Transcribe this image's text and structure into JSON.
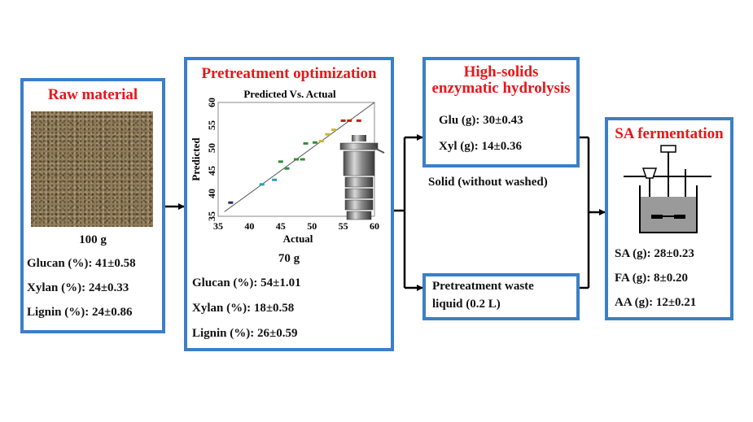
{
  "raw": {
    "title": "Raw material",
    "mass": "100 g",
    "lines": [
      "Glucan (%): 41±0.58",
      "Xylan (%): 24±0.33",
      "Lignin (%): 24±0.86"
    ]
  },
  "pretreat": {
    "title": "Pretreatment optimization",
    "mass": "70 g",
    "lines": [
      "Glucan (%): 54±1.01",
      "Xylan (%): 18±0.58",
      "Lignin (%): 26±0.59"
    ]
  },
  "hydro": {
    "title_line1": "High-solids",
    "title_line2": "enzymatic hydrolysis",
    "lines": [
      "Glu (g): 30±0.43",
      "Xyl (g): 14±0.36"
    ]
  },
  "solid_label": "Solid (without washed)",
  "waste": {
    "line1": "Pretreatment waste",
    "line2": "liquid (0.2 L)"
  },
  "ferm": {
    "title": "SA fermentation",
    "lines": [
      "SA (g): 28±0.23",
      "FA (g): 8±0.20",
      "AA (g): 12±0.21"
    ]
  },
  "chart_data": {
    "type": "scatter",
    "title": "Predicted Vs. Actual",
    "xlabel": "Actual",
    "ylabel": "Predicted",
    "xlim": [
      35,
      60
    ],
    "ylim": [
      35,
      60
    ],
    "xticks": [
      "35",
      "40",
      "45",
      "50",
      "55",
      "60"
    ],
    "yticks": [
      "35",
      "40",
      "45",
      "50",
      "55",
      "60"
    ],
    "points": [
      {
        "x": 37,
        "y": 38,
        "color": "#1a2a6c"
      },
      {
        "x": 42,
        "y": 42,
        "color": "#2aa0b0"
      },
      {
        "x": 44,
        "y": 43,
        "color": "#2aa0b0"
      },
      {
        "x": 45,
        "y": 47,
        "color": "#2f8f3a"
      },
      {
        "x": 46,
        "y": 45.5,
        "color": "#2f8f3a"
      },
      {
        "x": 47.5,
        "y": 47.5,
        "color": "#2f8f3a"
      },
      {
        "x": 48.5,
        "y": 47.5,
        "color": "#2f8f3a"
      },
      {
        "x": 49,
        "y": 51,
        "color": "#2f8f3a"
      },
      {
        "x": 50.5,
        "y": 51.2,
        "color": "#2f8f3a"
      },
      {
        "x": 51.5,
        "y": 51.5,
        "color": "#c8b82a"
      },
      {
        "x": 52.5,
        "y": 53,
        "color": "#c8b82a"
      },
      {
        "x": 53.5,
        "y": 54,
        "color": "#c8b82a"
      },
      {
        "x": 55,
        "y": 56,
        "color": "#c0201a"
      },
      {
        "x": 56,
        "y": 56,
        "color": "#c0201a"
      },
      {
        "x": 57.5,
        "y": 56,
        "color": "#c0201a"
      }
    ],
    "fit_line": [
      [
        36,
        36
      ],
      [
        60,
        60
      ]
    ]
  }
}
